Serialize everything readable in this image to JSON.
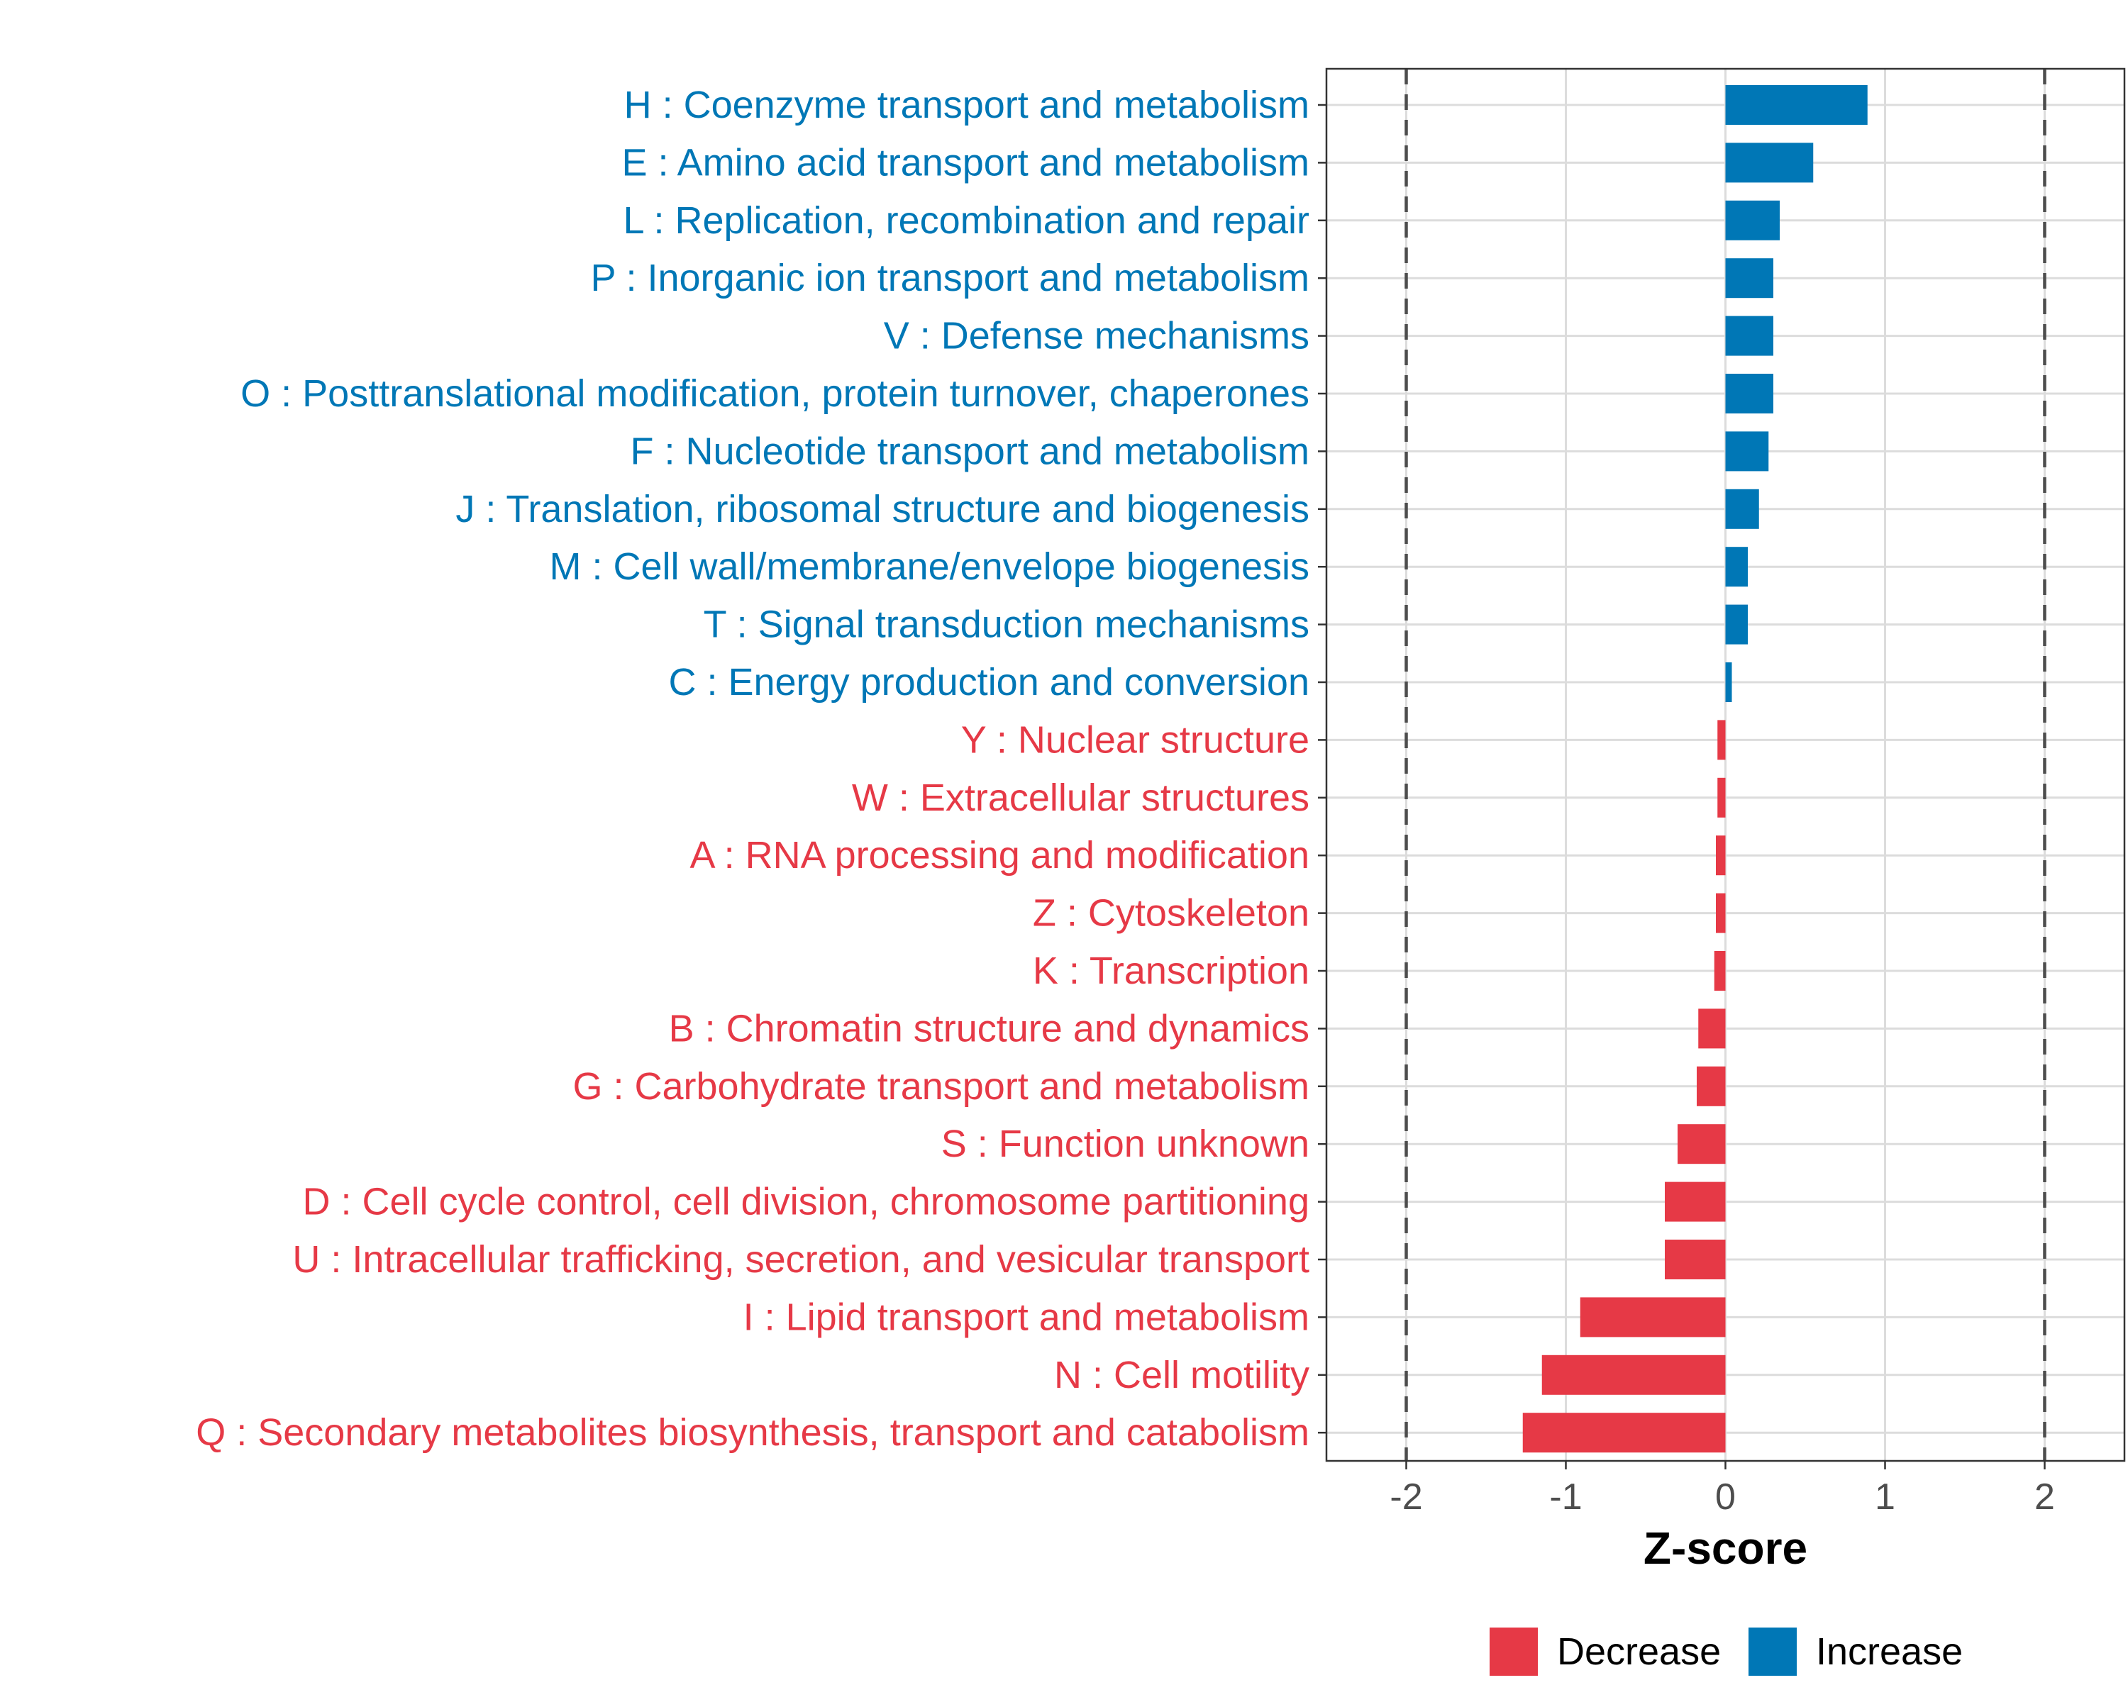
{
  "chart_data": {
    "type": "bar",
    "orientation": "horizontal",
    "xlabel": "Z-score",
    "xlim": [
      -2.5,
      2.5
    ],
    "xticks": [
      -2,
      -1,
      0,
      1,
      2
    ],
    "xtick_labels": [
      "-2",
      "-1",
      "0",
      "1",
      "2"
    ],
    "reference_lines": [
      -2,
      2
    ],
    "grid": true,
    "colors": {
      "Decrease": "#e63946",
      "Increase": "#0077b6"
    },
    "legend": {
      "placement": "bottom",
      "entries": [
        {
          "name": "Decrease",
          "color": "#e63946"
        },
        {
          "name": "Increase",
          "color": "#0077b6"
        }
      ]
    },
    "categories": [
      {
        "label": "H : Coenzyme transport and metabolism",
        "value": 0.89,
        "group": "Increase"
      },
      {
        "label": "E : Amino acid transport and metabolism",
        "value": 0.55,
        "group": "Increase"
      },
      {
        "label": "L : Replication, recombination and repair",
        "value": 0.34,
        "group": "Increase"
      },
      {
        "label": "P : Inorganic ion transport and metabolism",
        "value": 0.3,
        "group": "Increase"
      },
      {
        "label": "V : Defense mechanisms",
        "value": 0.3,
        "group": "Increase"
      },
      {
        "label": "O : Posttranslational modification, protein turnover, chaperones",
        "value": 0.3,
        "group": "Increase"
      },
      {
        "label": "F : Nucleotide transport and metabolism",
        "value": 0.27,
        "group": "Increase"
      },
      {
        "label": "J : Translation, ribosomal structure and biogenesis",
        "value": 0.21,
        "group": "Increase"
      },
      {
        "label": "M : Cell wall/membrane/envelope biogenesis",
        "value": 0.14,
        "group": "Increase"
      },
      {
        "label": "T : Signal transduction mechanisms",
        "value": 0.14,
        "group": "Increase"
      },
      {
        "label": "C : Energy production and conversion",
        "value": 0.04,
        "group": "Increase"
      },
      {
        "label": "Y : Nuclear structure",
        "value": -0.05,
        "group": "Decrease"
      },
      {
        "label": "W : Extracellular structures",
        "value": -0.05,
        "group": "Decrease"
      },
      {
        "label": "A : RNA processing and modification",
        "value": -0.06,
        "group": "Decrease"
      },
      {
        "label": "Z : Cytoskeleton",
        "value": -0.06,
        "group": "Decrease"
      },
      {
        "label": "K : Transcription",
        "value": -0.07,
        "group": "Decrease"
      },
      {
        "label": "B : Chromatin structure and dynamics",
        "value": -0.17,
        "group": "Decrease"
      },
      {
        "label": "G : Carbohydrate transport and metabolism",
        "value": -0.18,
        "group": "Decrease"
      },
      {
        "label": "S : Function unknown",
        "value": -0.3,
        "group": "Decrease"
      },
      {
        "label": "D : Cell cycle control, cell division, chromosome partitioning",
        "value": -0.38,
        "group": "Decrease"
      },
      {
        "label": "U : Intracellular trafficking, secretion, and vesicular transport",
        "value": -0.38,
        "group": "Decrease"
      },
      {
        "label": "I : Lipid transport and metabolism",
        "value": -0.91,
        "group": "Decrease"
      },
      {
        "label": "N : Cell motility",
        "value": -1.15,
        "group": "Decrease"
      },
      {
        "label": "Q : Secondary metabolites biosynthesis, transport and catabolism",
        "value": -1.27,
        "group": "Decrease"
      }
    ]
  }
}
